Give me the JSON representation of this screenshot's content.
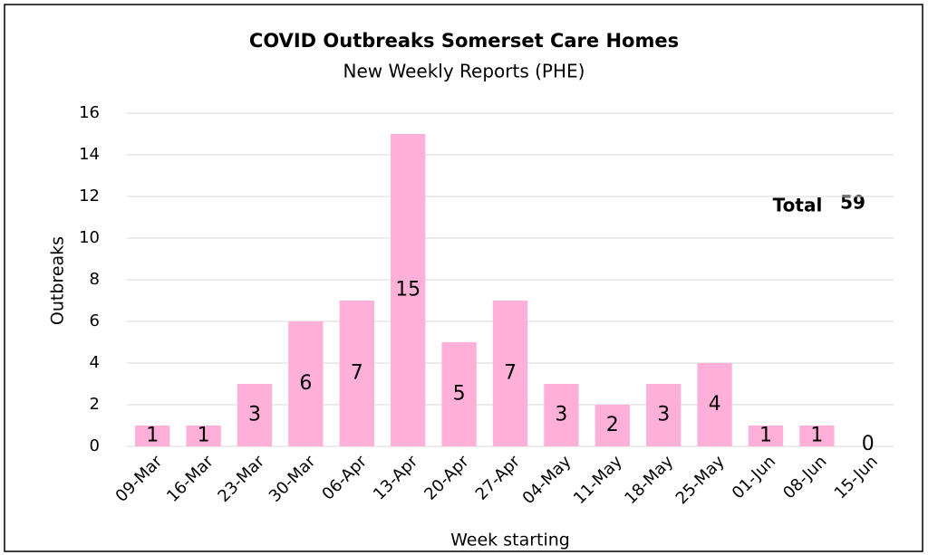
{
  "chart_data": {
    "type": "bar",
    "title": "COVID Outbreaks Somerset Care Homes",
    "subtitle": "New Weekly Reports (PHE)",
    "x_label": "Week starting",
    "y_label": "Outbreaks",
    "categories": [
      "09-Mar",
      "16-Mar",
      "23-Mar",
      "30-Mar",
      "06-Apr",
      "13-Apr",
      "20-Apr",
      "27-Apr",
      "04-May",
      "11-May",
      "18-May",
      "25-May",
      "01-Jun",
      "08-Jun",
      "15-Jun"
    ],
    "values": [
      1,
      1,
      3,
      6,
      7,
      15,
      5,
      7,
      3,
      2,
      3,
      4,
      1,
      1,
      0
    ],
    "color": "#ffb0d8",
    "ylim": [
      0,
      16
    ],
    "yticks": [
      0,
      2,
      4,
      6,
      8,
      10,
      12,
      14,
      16
    ],
    "grid": true,
    "annotation": {
      "label": "Total",
      "value": 59
    }
  }
}
